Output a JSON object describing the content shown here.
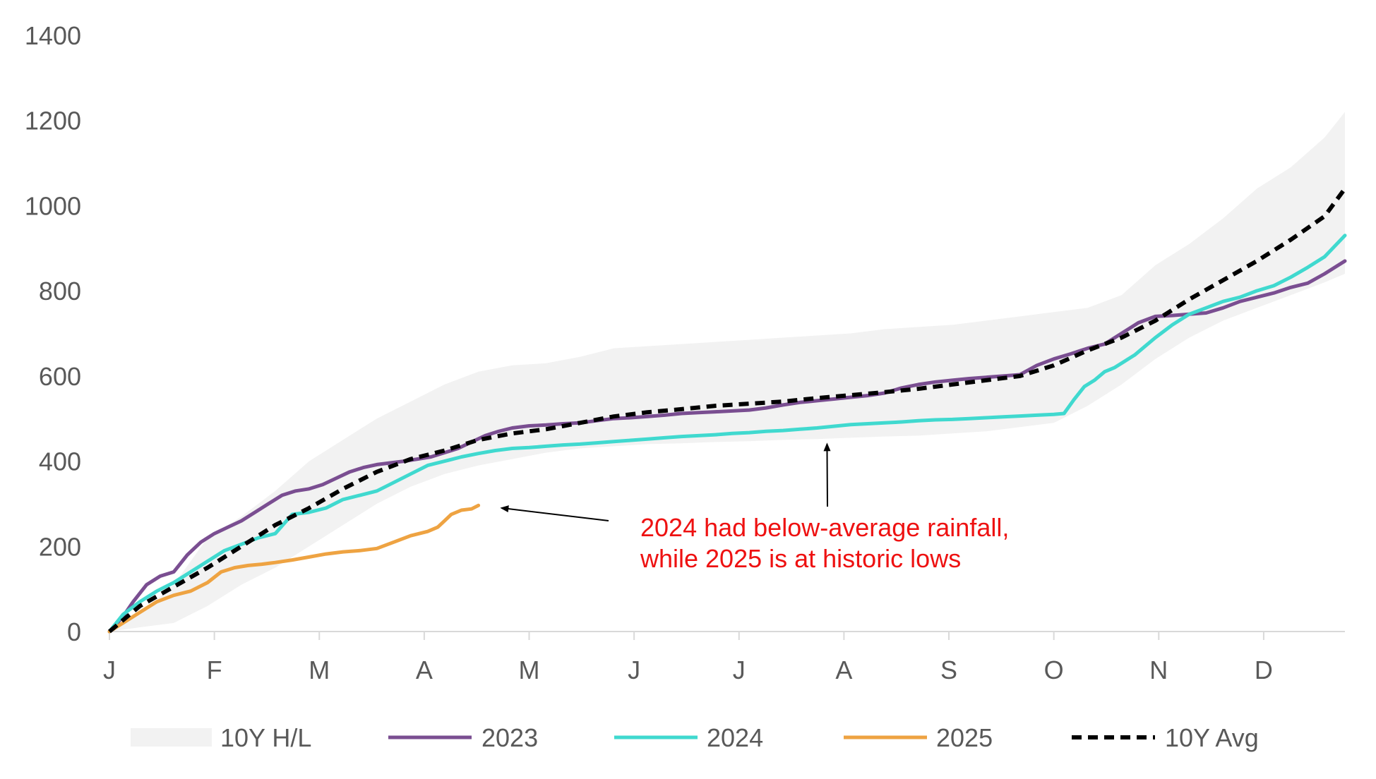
{
  "chart_data": {
    "type": "line",
    "x_unit": "day of year",
    "xlim": [
      1,
      366
    ],
    "ylim": [
      0,
      1400
    ],
    "y_ticks": [
      0,
      200,
      400,
      600,
      800,
      1000,
      1200,
      1400
    ],
    "month_ticks": [
      {
        "label": "J",
        "day": 1
      },
      {
        "label": "F",
        "day": 32
      },
      {
        "label": "M",
        "day": 63
      },
      {
        "label": "A",
        "day": 94
      },
      {
        "label": "M",
        "day": 125
      },
      {
        "label": "J",
        "day": 156
      },
      {
        "label": "J",
        "day": 187
      },
      {
        "label": "A",
        "day": 218
      },
      {
        "label": "S",
        "day": 249
      },
      {
        "label": "O",
        "day": 280
      },
      {
        "label": "N",
        "day": 311
      },
      {
        "label": "D",
        "day": 342
      }
    ],
    "band": {
      "name": "10Y H/L",
      "color": "#f2f2f2",
      "high": [
        [
          1,
          0
        ],
        [
          10,
          40
        ],
        [
          20,
          110
        ],
        [
          30,
          220
        ],
        [
          40,
          270
        ],
        [
          50,
          330
        ],
        [
          60,
          400
        ],
        [
          70,
          450
        ],
        [
          80,
          500
        ],
        [
          90,
          540
        ],
        [
          100,
          580
        ],
        [
          110,
          610
        ],
        [
          120,
          625
        ],
        [
          130,
          630
        ],
        [
          140,
          645
        ],
        [
          150,
          665
        ],
        [
          160,
          670
        ],
        [
          170,
          675
        ],
        [
          180,
          680
        ],
        [
          190,
          685
        ],
        [
          200,
          690
        ],
        [
          210,
          695
        ],
        [
          220,
          700
        ],
        [
          230,
          710
        ],
        [
          240,
          715
        ],
        [
          250,
          720
        ],
        [
          260,
          730
        ],
        [
          270,
          740
        ],
        [
          280,
          750
        ],
        [
          290,
          760
        ],
        [
          300,
          790
        ],
        [
          310,
          860
        ],
        [
          320,
          910
        ],
        [
          330,
          970
        ],
        [
          340,
          1040
        ],
        [
          350,
          1090
        ],
        [
          360,
          1160
        ],
        [
          366,
          1220
        ]
      ],
      "low": [
        [
          1,
          0
        ],
        [
          10,
          10
        ],
        [
          20,
          20
        ],
        [
          30,
          60
        ],
        [
          40,
          110
        ],
        [
          50,
          150
        ],
        [
          60,
          200
        ],
        [
          70,
          250
        ],
        [
          80,
          300
        ],
        [
          90,
          340
        ],
        [
          100,
          370
        ],
        [
          110,
          390
        ],
        [
          120,
          405
        ],
        [
          130,
          420
        ],
        [
          140,
          430
        ],
        [
          150,
          435
        ],
        [
          160,
          440
        ],
        [
          170,
          442
        ],
        [
          180,
          445
        ],
        [
          190,
          447
        ],
        [
          200,
          450
        ],
        [
          210,
          452
        ],
        [
          220,
          455
        ],
        [
          230,
          458
        ],
        [
          240,
          460
        ],
        [
          250,
          465
        ],
        [
          260,
          470
        ],
        [
          270,
          480
        ],
        [
          280,
          490
        ],
        [
          290,
          530
        ],
        [
          300,
          580
        ],
        [
          310,
          640
        ],
        [
          320,
          690
        ],
        [
          330,
          730
        ],
        [
          340,
          760
        ],
        [
          350,
          790
        ],
        [
          360,
          820
        ],
        [
          366,
          840
        ]
      ]
    },
    "series": [
      {
        "name": "2023",
        "color": "#7a4e91",
        "dashed": false,
        "points": [
          [
            1,
            0
          ],
          [
            5,
            35
          ],
          [
            8,
            70
          ],
          [
            12,
            110
          ],
          [
            16,
            130
          ],
          [
            20,
            140
          ],
          [
            24,
            180
          ],
          [
            28,
            210
          ],
          [
            32,
            230
          ],
          [
            36,
            245
          ],
          [
            40,
            260
          ],
          [
            44,
            280
          ],
          [
            48,
            300
          ],
          [
            52,
            320
          ],
          [
            56,
            330
          ],
          [
            60,
            335
          ],
          [
            64,
            345
          ],
          [
            68,
            360
          ],
          [
            72,
            375
          ],
          [
            76,
            385
          ],
          [
            80,
            392
          ],
          [
            84,
            396
          ],
          [
            88,
            400
          ],
          [
            92,
            405
          ],
          [
            96,
            410
          ],
          [
            100,
            420
          ],
          [
            104,
            430
          ],
          [
            108,
            445
          ],
          [
            112,
            460
          ],
          [
            116,
            470
          ],
          [
            120,
            478
          ],
          [
            125,
            483
          ],
          [
            130,
            485
          ],
          [
            135,
            488
          ],
          [
            140,
            490
          ],
          [
            145,
            495
          ],
          [
            150,
            500
          ],
          [
            155,
            502
          ],
          [
            160,
            505
          ],
          [
            165,
            508
          ],
          [
            170,
            512
          ],
          [
            175,
            514
          ],
          [
            180,
            516
          ],
          [
            185,
            518
          ],
          [
            190,
            520
          ],
          [
            195,
            525
          ],
          [
            200,
            532
          ],
          [
            205,
            538
          ],
          [
            210,
            542
          ],
          [
            215,
            546
          ],
          [
            220,
            550
          ],
          [
            225,
            554
          ],
          [
            230,
            560
          ],
          [
            235,
            572
          ],
          [
            240,
            580
          ],
          [
            245,
            586
          ],
          [
            250,
            590
          ],
          [
            255,
            594
          ],
          [
            260,
            597
          ],
          [
            265,
            600
          ],
          [
            270,
            603
          ],
          [
            275,
            625
          ],
          [
            280,
            640
          ],
          [
            285,
            652
          ],
          [
            290,
            665
          ],
          [
            295,
            675
          ],
          [
            300,
            700
          ],
          [
            305,
            725
          ],
          [
            310,
            740
          ],
          [
            315,
            742
          ],
          [
            320,
            745
          ],
          [
            325,
            748
          ],
          [
            330,
            760
          ],
          [
            335,
            775
          ],
          [
            340,
            785
          ],
          [
            345,
            795
          ],
          [
            350,
            808
          ],
          [
            355,
            818
          ],
          [
            360,
            840
          ],
          [
            366,
            870
          ]
        ]
      },
      {
        "name": "2024",
        "color": "#40d9cf",
        "dashed": false,
        "points": [
          [
            1,
            0
          ],
          [
            5,
            40
          ],
          [
            10,
            70
          ],
          [
            15,
            95
          ],
          [
            20,
            115
          ],
          [
            25,
            140
          ],
          [
            30,
            165
          ],
          [
            35,
            190
          ],
          [
            40,
            205
          ],
          [
            45,
            220
          ],
          [
            50,
            230
          ],
          [
            55,
            275
          ],
          [
            60,
            280
          ],
          [
            65,
            290
          ],
          [
            70,
            310
          ],
          [
            75,
            320
          ],
          [
            80,
            330
          ],
          [
            85,
            350
          ],
          [
            90,
            370
          ],
          [
            95,
            390
          ],
          [
            100,
            400
          ],
          [
            105,
            410
          ],
          [
            110,
            418
          ],
          [
            115,
            425
          ],
          [
            120,
            430
          ],
          [
            125,
            432
          ],
          [
            130,
            435
          ],
          [
            135,
            438
          ],
          [
            140,
            440
          ],
          [
            145,
            443
          ],
          [
            150,
            446
          ],
          [
            155,
            449
          ],
          [
            160,
            452
          ],
          [
            165,
            455
          ],
          [
            170,
            458
          ],
          [
            175,
            460
          ],
          [
            180,
            462
          ],
          [
            185,
            465
          ],
          [
            190,
            467
          ],
          [
            195,
            470
          ],
          [
            200,
            472
          ],
          [
            205,
            475
          ],
          [
            210,
            478
          ],
          [
            215,
            482
          ],
          [
            220,
            486
          ],
          [
            225,
            488
          ],
          [
            230,
            490
          ],
          [
            235,
            492
          ],
          [
            240,
            495
          ],
          [
            245,
            497
          ],
          [
            250,
            498
          ],
          [
            255,
            500
          ],
          [
            260,
            502
          ],
          [
            265,
            504
          ],
          [
            270,
            506
          ],
          [
            275,
            508
          ],
          [
            280,
            510
          ],
          [
            283,
            512
          ],
          [
            286,
            545
          ],
          [
            289,
            575
          ],
          [
            292,
            590
          ],
          [
            295,
            610
          ],
          [
            298,
            620
          ],
          [
            301,
            635
          ],
          [
            304,
            650
          ],
          [
            307,
            670
          ],
          [
            310,
            690
          ],
          [
            315,
            720
          ],
          [
            320,
            745
          ],
          [
            325,
            760
          ],
          [
            330,
            775
          ],
          [
            335,
            785
          ],
          [
            340,
            800
          ],
          [
            345,
            812
          ],
          [
            350,
            832
          ],
          [
            355,
            855
          ],
          [
            360,
            880
          ],
          [
            366,
            930
          ]
        ]
      },
      {
        "name": "2025",
        "color": "#eea342",
        "dashed": false,
        "points": [
          [
            1,
            0
          ],
          [
            5,
            20
          ],
          [
            10,
            45
          ],
          [
            15,
            70
          ],
          [
            20,
            85
          ],
          [
            25,
            95
          ],
          [
            30,
            115
          ],
          [
            34,
            140
          ],
          [
            38,
            150
          ],
          [
            42,
            155
          ],
          [
            46,
            158
          ],
          [
            50,
            162
          ],
          [
            55,
            168
          ],
          [
            60,
            175
          ],
          [
            65,
            182
          ],
          [
            70,
            187
          ],
          [
            75,
            190
          ],
          [
            80,
            195
          ],
          [
            85,
            210
          ],
          [
            90,
            225
          ],
          [
            95,
            235
          ],
          [
            98,
            245
          ],
          [
            100,
            260
          ],
          [
            102,
            275
          ],
          [
            105,
            285
          ],
          [
            108,
            288
          ],
          [
            110,
            296
          ]
        ]
      },
      {
        "name": "10Y Avg",
        "color": "#000000",
        "dashed": true,
        "points": [
          [
            1,
            0
          ],
          [
            10,
            60
          ],
          [
            20,
            105
          ],
          [
            30,
            150
          ],
          [
            40,
            200
          ],
          [
            50,
            250
          ],
          [
            60,
            290
          ],
          [
            70,
            335
          ],
          [
            80,
            375
          ],
          [
            90,
            405
          ],
          [
            100,
            425
          ],
          [
            110,
            450
          ],
          [
            120,
            465
          ],
          [
            130,
            475
          ],
          [
            140,
            490
          ],
          [
            150,
            505
          ],
          [
            160,
            515
          ],
          [
            170,
            522
          ],
          [
            180,
            530
          ],
          [
            190,
            535
          ],
          [
            200,
            540
          ],
          [
            210,
            548
          ],
          [
            220,
            555
          ],
          [
            230,
            562
          ],
          [
            240,
            570
          ],
          [
            250,
            580
          ],
          [
            260,
            590
          ],
          [
            270,
            600
          ],
          [
            280,
            625
          ],
          [
            290,
            660
          ],
          [
            300,
            690
          ],
          [
            310,
            730
          ],
          [
            320,
            780
          ],
          [
            330,
            825
          ],
          [
            340,
            870
          ],
          [
            350,
            920
          ],
          [
            360,
            975
          ],
          [
            366,
            1040
          ]
        ]
      }
    ],
    "annotation": {
      "lines": [
        "2024 had below-average rainfall,",
        "while 2025 is at historic lows"
      ],
      "arrow1_to": [
        116,
        300
      ],
      "arrow2_to": [
        213,
        470
      ]
    },
    "legend": [
      {
        "label": "10Y H/L",
        "kind": "band"
      },
      {
        "label": "2023",
        "kind": "line"
      },
      {
        "label": "2024",
        "kind": "line"
      },
      {
        "label": "2025",
        "kind": "line"
      },
      {
        "label": "10Y Avg",
        "kind": "dashed"
      }
    ],
    "grid": false,
    "legend_position": "bottom"
  }
}
